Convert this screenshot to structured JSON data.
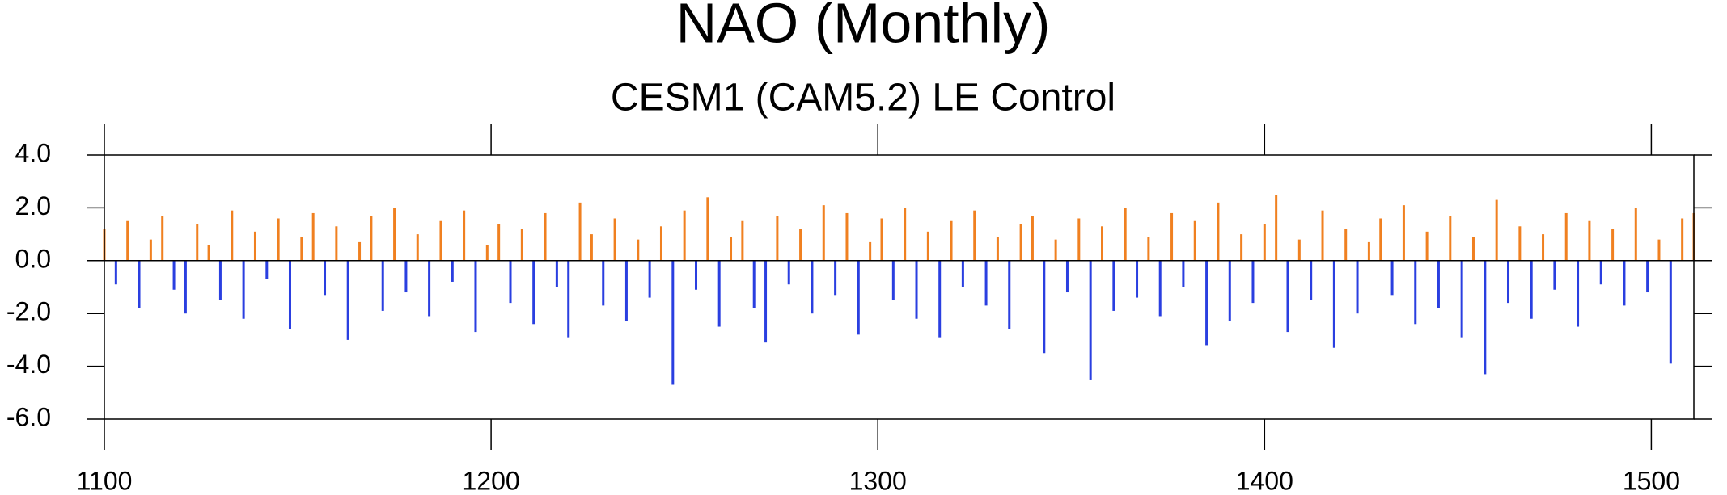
{
  "chart_data": {
    "type": "bar",
    "title": "NAO (Monthly)",
    "subtitle": "CESM1 (CAM5.2) LE Control",
    "x": [
      1100,
      1103,
      1106,
      1109,
      1112,
      1115,
      1118,
      1121,
      1124,
      1127,
      1130,
      1133,
      1136,
      1139,
      1142,
      1145,
      1148,
      1151,
      1154,
      1157,
      1160,
      1163,
      1166,
      1169,
      1172,
      1175,
      1178,
      1181,
      1184,
      1187,
      1190,
      1193,
      1196,
      1199,
      1202,
      1205,
      1208,
      1211,
      1214,
      1217,
      1220,
      1223,
      1226,
      1229,
      1232,
      1235,
      1238,
      1241,
      1244,
      1247,
      1250,
      1253,
      1256,
      1259,
      1262,
      1265,
      1268,
      1271,
      1274,
      1277,
      1280,
      1283,
      1286,
      1289,
      1292,
      1295,
      1298,
      1301,
      1304,
      1307,
      1310,
      1313,
      1316,
      1319,
      1322,
      1325,
      1328,
      1331,
      1334,
      1337,
      1340,
      1343,
      1346,
      1349,
      1352,
      1355,
      1358,
      1361,
      1364,
      1367,
      1370,
      1373,
      1376,
      1379,
      1382,
      1385,
      1388,
      1391,
      1394,
      1397,
      1400,
      1403,
      1406,
      1409,
      1412,
      1415,
      1418,
      1421,
      1424,
      1427,
      1430,
      1433,
      1436,
      1439,
      1442,
      1445,
      1448,
      1451,
      1454,
      1457,
      1460,
      1463,
      1466,
      1469,
      1472,
      1475,
      1478,
      1481,
      1484,
      1487,
      1490,
      1493,
      1496,
      1499,
      1502,
      1505,
      1508,
      1511
    ],
    "values": [
      1.2,
      -0.9,
      1.5,
      -1.8,
      0.8,
      1.7,
      -1.1,
      -2.0,
      1.4,
      0.6,
      -1.5,
      1.9,
      -2.2,
      1.1,
      -0.7,
      1.6,
      -2.6,
      0.9,
      1.8,
      -1.3,
      1.3,
      -3.0,
      0.7,
      1.7,
      -1.9,
      2.0,
      -1.2,
      1.0,
      -2.1,
      1.5,
      -0.8,
      1.9,
      -2.7,
      0.6,
      1.4,
      -1.6,
      1.2,
      -2.4,
      1.8,
      -1.0,
      -2.9,
      2.2,
      1.0,
      -1.7,
      1.6,
      -2.3,
      0.8,
      -1.4,
      1.3,
      -4.7,
      1.9,
      -1.1,
      2.4,
      -2.5,
      0.9,
      1.5,
      -1.8,
      -3.1,
      1.7,
      -0.9,
      1.2,
      -2.0,
      2.1,
      -1.3,
      1.8,
      -2.8,
      0.7,
      1.6,
      -1.5,
      2.0,
      -2.2,
      1.1,
      -2.9,
      1.5,
      -1.0,
      1.9,
      -1.7,
      0.9,
      -2.6,
      1.4,
      1.7,
      -3.5,
      0.8,
      -1.2,
      1.6,
      -4.5,
      1.3,
      -1.9,
      2.0,
      -1.4,
      0.9,
      -2.1,
      1.8,
      -1.0,
      1.5,
      -3.2,
      2.2,
      -2.3,
      1.0,
      -1.6,
      1.4,
      2.5,
      -2.7,
      0.8,
      -1.5,
      1.9,
      -3.3,
      1.2,
      -2.0,
      0.7,
      1.6,
      -1.3,
      2.1,
      -2.4,
      1.1,
      -1.8,
      1.7,
      -2.9,
      0.9,
      -4.3,
      2.3,
      -1.6,
      1.3,
      -2.2,
      1.0,
      -1.1,
      1.8,
      -2.5,
      1.5,
      -0.9,
      1.2,
      -1.7,
      2.0,
      -1.2,
      0.8,
      -3.9,
      1.6,
      1.8
    ],
    "positive_color": "#f08020",
    "negative_color": "#2a3fe0",
    "xlim": [
      1100,
      1511
    ],
    "ylim": [
      -6,
      4
    ],
    "xticks": [
      1100,
      1200,
      1300,
      1400,
      1500
    ],
    "yticks": [
      {
        "value": -6,
        "label": "-6.0"
      },
      {
        "value": -4,
        "label": "-4.0"
      },
      {
        "value": -2,
        "label": "-2.0"
      },
      {
        "value": 0,
        "label": "0.0"
      },
      {
        "value": 2,
        "label": "2.0"
      },
      {
        "value": 4,
        "label": "4.0"
      }
    ],
    "grid": false
  }
}
